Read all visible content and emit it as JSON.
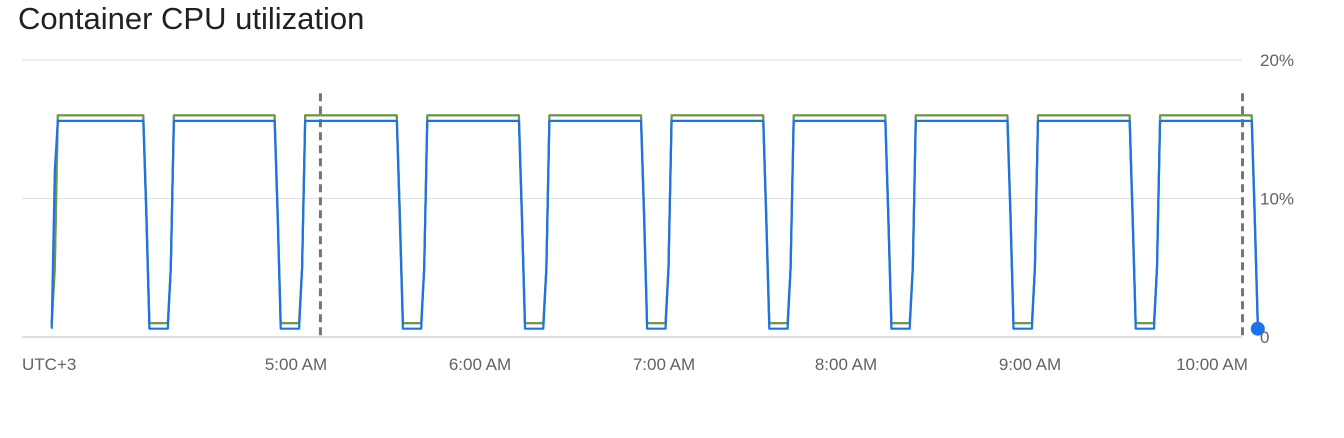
{
  "title": "Container CPU utilization",
  "chart_data": {
    "type": "line",
    "title": "Container CPU utilization",
    "xlabel": "",
    "ylabel": "",
    "timezone_label": "UTC+3",
    "x_ticks": [
      "5:00 AM",
      "6:00 AM",
      "7:00 AM",
      "8:00 AM",
      "9:00 AM",
      "10:00 AM"
    ],
    "y_ticks": [
      "0",
      "10%",
      "20%"
    ],
    "ylim": [
      0,
      20
    ],
    "grid": true,
    "legend": "none",
    "x": [
      "3:40 AM",
      "3:41 AM",
      "3:42 AM",
      "4:10 AM",
      "4:11 AM",
      "4:12 AM",
      "4:18 AM",
      "4:19 AM",
      "4:20 AM",
      "4:53 AM",
      "4:54 AM",
      "4:55 AM",
      "5:01 AM",
      "5:02 AM",
      "5:03 AM",
      "5:33 AM",
      "5:34 AM",
      "5:35 AM",
      "5:41 AM",
      "5:42 AM",
      "5:43 AM",
      "6:13 AM",
      "6:14 AM",
      "6:15 AM",
      "6:21 AM",
      "6:22 AM",
      "6:23 AM",
      "6:53 AM",
      "6:54 AM",
      "6:55 AM",
      "7:01 AM",
      "7:02 AM",
      "7:03 AM",
      "7:33 AM",
      "7:34 AM",
      "7:35 AM",
      "7:41 AM",
      "7:42 AM",
      "7:43 AM",
      "8:13 AM",
      "8:14 AM",
      "8:15 AM",
      "8:21 AM",
      "8:22 AM",
      "8:23 AM",
      "8:53 AM",
      "8:54 AM",
      "8:55 AM",
      "9:01 AM",
      "9:02 AM",
      "9:03 AM",
      "9:33 AM",
      "9:34 AM",
      "9:35 AM",
      "9:41 AM",
      "9:42 AM",
      "9:43 AM",
      "10:13 AM",
      "10:14 AM",
      "10:15 AM"
    ],
    "series": [
      {
        "color": "#b07fc5",
        "values": [
          0.9,
          5,
          16.0,
          16.0,
          9,
          1.0,
          1.0,
          5,
          16.0,
          16.0,
          9,
          1.0,
          1.0,
          5,
          16.0,
          16.0,
          9,
          1.0,
          1.0,
          5,
          16.0,
          16.0,
          9,
          1.0,
          1.0,
          5,
          16.0,
          16.0,
          9,
          1.0,
          1.0,
          5,
          16.0,
          16.0,
          9,
          1.0,
          1.0,
          5,
          16.0,
          16.0,
          9,
          1.0,
          1.0,
          5,
          16.0,
          16.0,
          9,
          1.0,
          1.0,
          5,
          16.0,
          16.0,
          9,
          1.0,
          1.0,
          5,
          16.0,
          16.0,
          9,
          1.0
        ]
      },
      {
        "color": "#6f9a45",
        "values": [
          0.9,
          5,
          16.0,
          16.0,
          9,
          1.0,
          1.0,
          5,
          16.0,
          16.0,
          9,
          1.0,
          1.0,
          5,
          16.0,
          16.0,
          9,
          1.0,
          1.0,
          5,
          16.0,
          16.0,
          9,
          1.0,
          1.0,
          5,
          16.0,
          16.0,
          9,
          1.0,
          1.0,
          5,
          16.0,
          16.0,
          9,
          1.0,
          1.0,
          5,
          16.0,
          16.0,
          9,
          1.0,
          1.0,
          5,
          16.0,
          16.0,
          9,
          1.0,
          1.0,
          5,
          16.0,
          16.0,
          9,
          1.0,
          1.0,
          5,
          16.0,
          16.0,
          9,
          1.0
        ]
      },
      {
        "color": "#1a73e8",
        "values": [
          0.6,
          12,
          15.6,
          15.6,
          8.5,
          0.6,
          0.6,
          5,
          15.6,
          15.6,
          8.5,
          0.6,
          0.6,
          5,
          15.6,
          15.6,
          8.5,
          0.6,
          0.6,
          5,
          15.6,
          15.6,
          8.5,
          0.6,
          0.6,
          5,
          15.6,
          15.6,
          8.5,
          0.6,
          0.6,
          5,
          15.6,
          15.6,
          8.5,
          0.6,
          0.6,
          5,
          15.6,
          15.6,
          8.5,
          0.6,
          0.6,
          5,
          15.6,
          15.6,
          8.5,
          0.6,
          0.6,
          5,
          15.6,
          15.6,
          8.5,
          0.6,
          0.6,
          5,
          15.6,
          15.6,
          8.5,
          0.6
        ]
      }
    ],
    "last_point": {
      "x": "10:15 AM",
      "y": 0.6,
      "color": "#1a73e8"
    },
    "markers": [
      "5:08 AM",
      "10:10 AM"
    ],
    "colors": {
      "grid": "#e0e0e0",
      "axis": "#bdbdbd",
      "marker": "#757575",
      "ticks": "#5f6368"
    }
  }
}
